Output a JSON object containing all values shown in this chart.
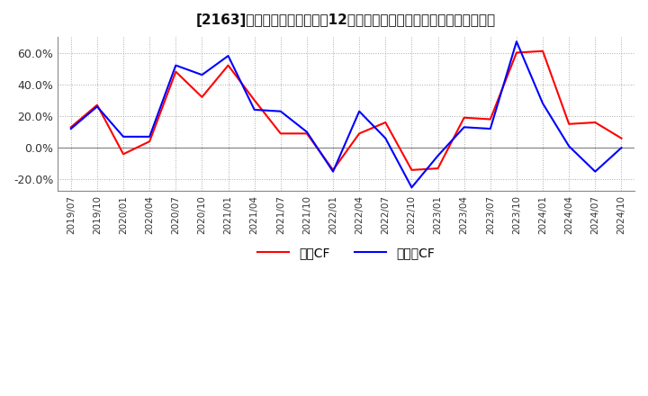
{
  "title": "[2163]　キャッシュフローの12か月移動合計の対前年同期増減率の推移",
  "legend_labels": [
    "営業CF",
    "フリーCF"
  ],
  "line_colors": [
    "#ff0000",
    "#0000ff"
  ],
  "background_color": "#ffffff",
  "grid_color": "#aaaaaa",
  "ylim": [
    -0.27,
    0.7
  ],
  "yticks": [
    -0.2,
    0.0,
    0.2,
    0.4,
    0.6
  ],
  "ytick_labels": [
    "-20.0%",
    "0.0%",
    "20.0%",
    "40.0%",
    "60.0%"
  ],
  "dates": [
    "2019/07",
    "2019/10",
    "2020/01",
    "2020/04",
    "2020/07",
    "2020/10",
    "2021/01",
    "2021/04",
    "2021/07",
    "2021/10",
    "2022/01",
    "2022/04",
    "2022/07",
    "2022/10",
    "2023/01",
    "2023/04",
    "2023/07",
    "2023/10",
    "2024/01",
    "2024/04",
    "2024/07",
    "2024/10"
  ],
  "series_eigyo": [
    0.13,
    0.27,
    -0.04,
    0.04,
    0.48,
    0.32,
    0.52,
    0.3,
    0.09,
    0.09,
    -0.14,
    0.09,
    0.16,
    -0.14,
    -0.13,
    0.19,
    0.18,
    0.6,
    0.61,
    0.15,
    0.16,
    0.06
  ],
  "series_free": [
    0.12,
    0.26,
    0.07,
    0.07,
    0.52,
    0.46,
    0.58,
    0.24,
    0.23,
    0.1,
    -0.15,
    0.23,
    0.06,
    -0.25,
    -0.05,
    0.13,
    0.12,
    0.67,
    0.28,
    0.01,
    -0.15,
    0.0
  ]
}
